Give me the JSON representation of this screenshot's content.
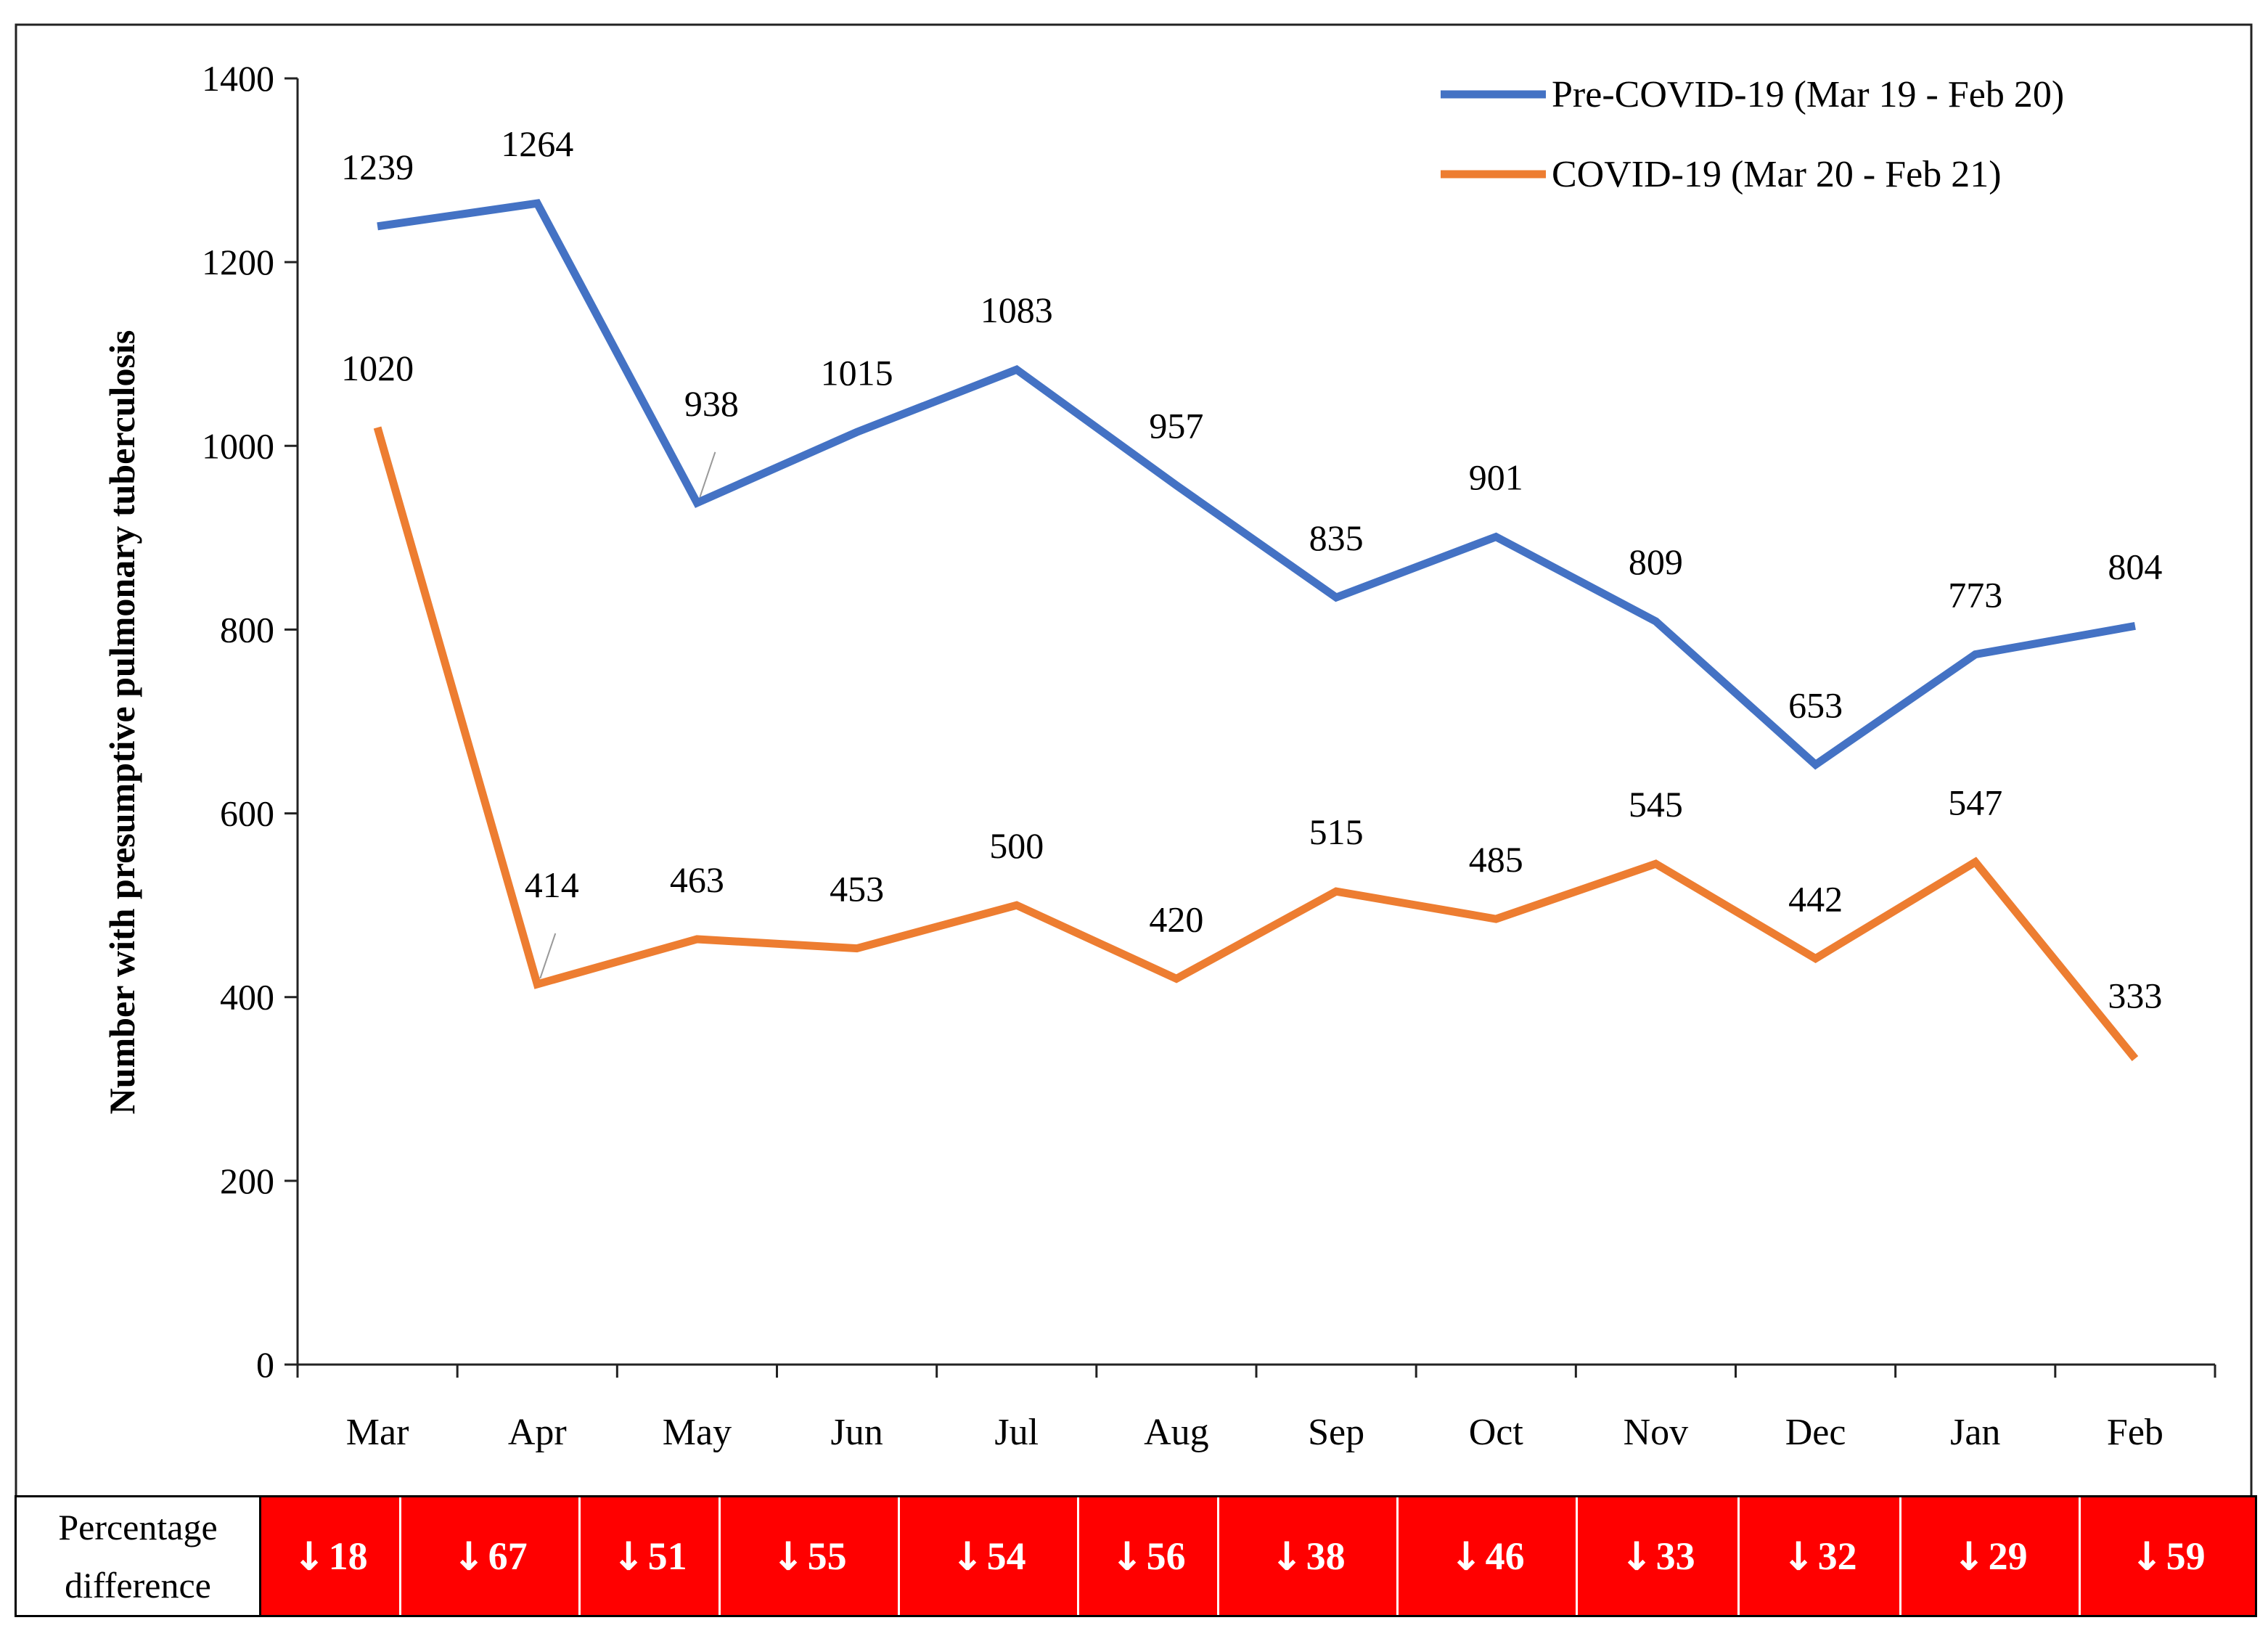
{
  "chart_data": {
    "type": "line",
    "categories": [
      "Mar",
      "Apr",
      "May",
      "Jun",
      "Jul",
      "Aug",
      "Sep",
      "Oct",
      "Nov",
      "Dec",
      "Jan",
      "Feb"
    ],
    "series": [
      {
        "name": "Pre-COVID-19 (Mar 19 - Feb 20)",
        "color": "#4472c4",
        "values": [
          1239,
          1264,
          938,
          1015,
          1083,
          957,
          835,
          901,
          809,
          653,
          773,
          804
        ]
      },
      {
        "name": "COVID-19 (Mar 20 - Feb 21)",
        "color": "#ed7d31",
        "values": [
          1020,
          414,
          463,
          453,
          500,
          420,
          515,
          485,
          545,
          442,
          547,
          333
        ]
      }
    ],
    "title": "",
    "xlabel": "",
    "ylabel": "Number with presumptive pulmonary tuberculosis",
    "ylim": [
      0,
      1400
    ],
    "yticks": [
      0,
      200,
      400,
      600,
      800,
      1000,
      1200,
      1400
    ],
    "grid": false,
    "legend": "top-right"
  },
  "percentage_table": {
    "header_line1": "Percentage",
    "header_line2": "difference",
    "arrow": "🡓",
    "values": [
      "18",
      "67",
      "51",
      "55",
      "54",
      "56",
      "38",
      "46",
      "33",
      "32",
      "29",
      "59"
    ],
    "color": "#ff0000"
  }
}
